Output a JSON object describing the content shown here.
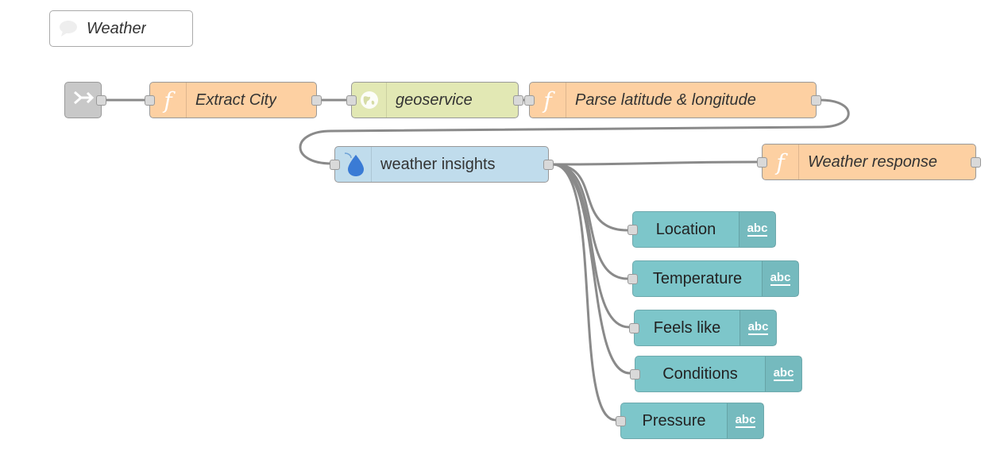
{
  "canvas": {
    "comment": {
      "label": "Weather",
      "icon": "comment-icon"
    },
    "nodes": {
      "link_in": {
        "icon": "link-in-icon"
      },
      "extract_city": {
        "label": "Extract City",
        "icon": "function-icon",
        "glyph": "f"
      },
      "geoservice": {
        "label": "geoservice",
        "icon": "globe-icon"
      },
      "parse_latlong": {
        "label": "Parse latitude & longitude",
        "icon": "function-icon",
        "glyph": "f"
      },
      "weather_insights": {
        "label": "weather insights",
        "icon": "water-drop-icon"
      },
      "weather_response": {
        "label": "Weather response",
        "icon": "function-icon",
        "glyph": "f"
      },
      "location": {
        "label": "Location",
        "icon": "abc-icon",
        "glyph": "abc"
      },
      "temperature": {
        "label": "Temperature",
        "icon": "abc-icon",
        "glyph": "abc"
      },
      "feels_like": {
        "label": "Feels like",
        "icon": "abc-icon",
        "glyph": "abc"
      },
      "conditions": {
        "label": "Conditions",
        "icon": "abc-icon",
        "glyph": "abc"
      },
      "pressure": {
        "label": "Pressure",
        "icon": "abc-icon",
        "glyph": "abc"
      }
    },
    "colors": {
      "function": "#fdd0a2",
      "geoservice": "#e2e8b4",
      "weather": "#c0dcec",
      "text_node": "#7dc6ca",
      "link": "#c8c8c8",
      "wire": "#8a8a8a"
    }
  }
}
